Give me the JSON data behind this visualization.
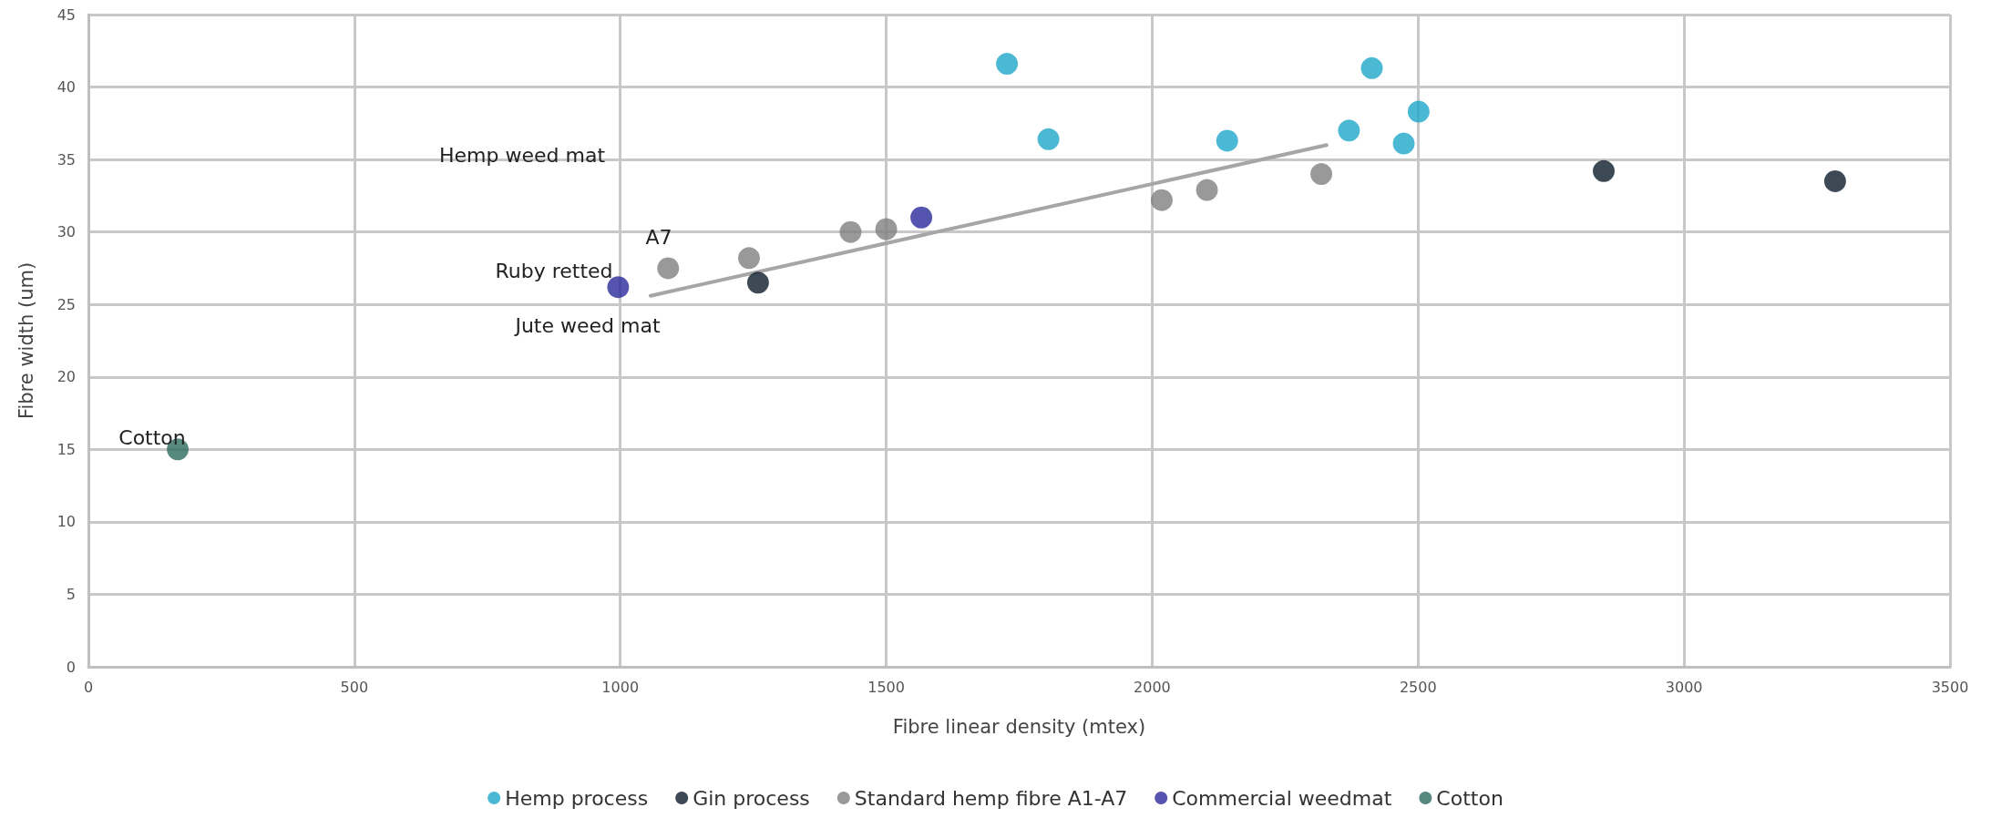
{
  "chart_data": {
    "type": "scatter",
    "xlabel": "Fibre linear density (mtex)",
    "ylabel": "Fibre width (um)",
    "series": [
      {
        "name": "Hemp process",
        "color": "#1fa8c9",
        "x": [
          1727,
          1805,
          2141,
          2370,
          2413,
          2473,
          2501
        ],
        "values": [
          41.6,
          36.4,
          36.3,
          37.0,
          41.3,
          36.1,
          38.3
        ]
      },
      {
        "name": "Gin process",
        "color": "#0d1b2a",
        "x": [
          1259,
          2849,
          3284
        ],
        "values": [
          26.5,
          34.2,
          33.5
        ]
      },
      {
        "name": "Standard hemp fibre A1-A7",
        "color": "#7f7f7f",
        "x": [
          1090,
          1242,
          1433,
          1500,
          2018,
          2103,
          2318
        ],
        "values": [
          27.5,
          28.2,
          30.0,
          30.2,
          32.2,
          32.9,
          34.0
        ]
      },
      {
        "name": "Commercial weedmat",
        "color": "#2a2a9c",
        "x": [
          996,
          1566
        ],
        "values": [
          26.2,
          31.0
        ]
      },
      {
        "name": "Cotton",
        "color": "#2e6b5e",
        "x": [
          168
        ],
        "values": [
          15.0
        ]
      },
      {
        "type": "line",
        "color": "#a6a6a6",
        "marker": "none",
        "x": [
          1057,
          2328
        ],
        "values": [
          25.6,
          36.0
        ]
      }
    ],
    "annotations": [
      "Hemp weed mat",
      "A7",
      "Ruby retted",
      "Jute weed mat",
      "Cotton"
    ],
    "xlim": [
      0,
      3500
    ],
    "xticks": [
      0,
      500,
      1000,
      1500,
      2000,
      2500,
      3000,
      3500
    ],
    "ylim": [
      0,
      45
    ],
    "yticks": [
      0,
      5,
      10,
      15,
      20,
      25,
      30,
      35,
      40,
      45
    ],
    "grid": true,
    "legend": "bottom",
    "marker": "circle"
  }
}
